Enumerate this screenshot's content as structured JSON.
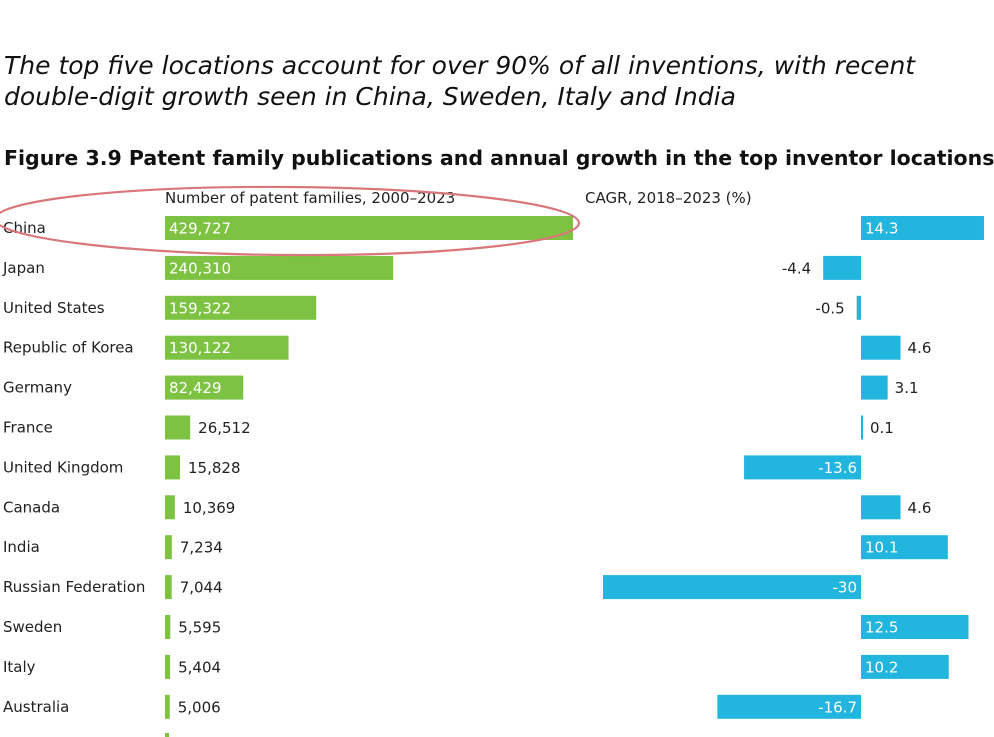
{
  "headline": "The top five locations account for over 90% of all inventions, with recent double-digit growth seen in China, Sweden, Italy and India",
  "figure_title": "Figure 3.9 Patent family publications and annual growth in the top inventor locations",
  "colors": {
    "green": "#7dc242",
    "blue": "#22b5dd",
    "highlight_ellipse": "#d9777a",
    "axis_line": "#333333"
  },
  "chart_data": {
    "type": "bar",
    "categories": [
      "China",
      "Japan",
      "United States",
      "Republic of Korea",
      "Germany",
      "France",
      "United Kingdom",
      "Canada",
      "India",
      "Russian Federation",
      "Sweden",
      "Italy",
      "Australia"
    ],
    "series": [
      {
        "name": "Number of patent families, 2000–2023",
        "values": [
          429727,
          240310,
          159322,
          130122,
          82429,
          26512,
          15828,
          10369,
          7234,
          7044,
          5595,
          5404,
          5006
        ],
        "labels": [
          "429,727",
          "240,310",
          "159,322",
          "130,122",
          "82,429",
          "26,512",
          "15,828",
          "10,369",
          "7,234",
          "7,044",
          "5,595",
          "5,404",
          "5,006"
        ]
      },
      {
        "name": "CAGR, 2018–2023 (%)",
        "values": [
          14.3,
          -4.4,
          -0.5,
          4.6,
          3.1,
          0.1,
          -13.6,
          4.6,
          10.1,
          -30,
          12.5,
          10.2,
          -16.7
        ],
        "labels": [
          "14.3",
          "-4.4",
          "-0.5",
          "4.6",
          "3.1",
          "0.1",
          "-13.6",
          "4.6",
          "10.1",
          "-30",
          "12.5",
          "10.2",
          "-16.7"
        ]
      }
    ],
    "highlighted_category": "China"
  }
}
